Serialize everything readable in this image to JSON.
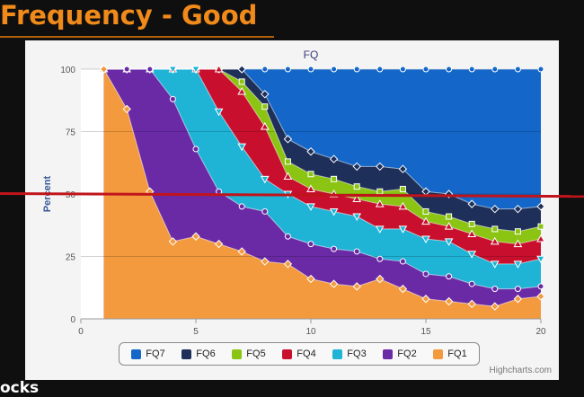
{
  "slide": {
    "title": "Frequency - Good",
    "footer": "ocks"
  },
  "chart_data": {
    "type": "area",
    "stacking": "percent",
    "title": "FQ",
    "ylabel": "Percent",
    "xlabel": "",
    "xlim": [
      0,
      20
    ],
    "ylim": [
      0,
      100
    ],
    "xticks": [
      0,
      5,
      10,
      15,
      20
    ],
    "yticks": [
      0,
      25,
      50,
      75,
      100
    ],
    "grid": true,
    "legend": "bottom",
    "credits": "Highcharts.com",
    "x": [
      1,
      2,
      3,
      4,
      5,
      6,
      7,
      8,
      9,
      10,
      11,
      12,
      13,
      14,
      15,
      16,
      17,
      18,
      19,
      20
    ],
    "series": [
      {
        "name": "FQ7",
        "color": "#1467c8",
        "values": [
          100,
          100,
          100,
          100,
          100,
          100,
          100,
          100,
          100,
          100,
          100,
          100,
          100,
          100,
          100,
          100,
          100,
          100,
          100,
          100
        ]
      },
      {
        "name": "FQ6",
        "color": "#1e2f5a",
        "values": [
          100,
          100,
          100,
          100,
          100,
          100,
          100,
          90,
          72,
          67,
          64,
          61,
          61,
          60,
          51,
          50,
          46,
          44,
          44,
          45
        ]
      },
      {
        "name": "FQ5",
        "color": "#8cc414",
        "values": [
          100,
          100,
          100,
          100,
          100,
          100,
          95,
          85,
          63,
          58,
          56,
          53,
          51,
          52,
          43,
          41,
          38,
          36,
          35,
          37
        ]
      },
      {
        "name": "FQ4",
        "color": "#c8102e",
        "values": [
          100,
          100,
          100,
          100,
          100,
          100,
          91,
          77,
          57,
          52,
          50,
          48,
          46,
          45,
          39,
          37,
          34,
          31,
          30,
          32
        ]
      },
      {
        "name": "FQ3",
        "color": "#1fb4d6",
        "values": [
          100,
          100,
          100,
          100,
          100,
          83,
          69,
          56,
          50,
          45,
          43,
          41,
          36,
          36,
          32,
          31,
          26,
          22,
          22,
          24
        ]
      },
      {
        "name": "FQ2",
        "color": "#6a2aa5",
        "values": [
          100,
          100,
          100,
          88,
          68,
          51,
          45,
          43,
          33,
          30,
          28,
          27,
          24,
          23,
          18,
          17,
          14,
          12,
          12,
          13
        ]
      },
      {
        "name": "FQ1",
        "color": "#f39a3e",
        "values": [
          100,
          84,
          51,
          31,
          33,
          30,
          27,
          23,
          22,
          16,
          14,
          13,
          16,
          12,
          8,
          7,
          6,
          5,
          8,
          9
        ]
      }
    ]
  }
}
